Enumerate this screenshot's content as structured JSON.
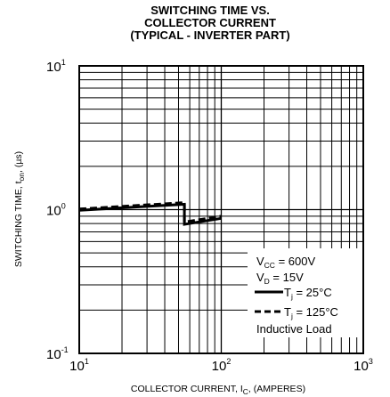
{
  "chart_data": {
    "type": "line",
    "title_lines": [
      "SWITCHING TIME VS.",
      "COLLECTOR CURRENT",
      "(TYPICAL - INVERTER PART)"
    ],
    "xlabel": "COLLECTOR CURRENT, I",
    "xlabel_sub": "C",
    "xlabel_suffix": ", (AMPERES)",
    "ylabel": "SWITCHING TIME, t",
    "ylabel_sub": "on",
    "ylabel_suffix": ", (µs)",
    "x_scale": "log",
    "y_scale": "log",
    "xlim": [
      10,
      1000
    ],
    "ylim": [
      0.1,
      10
    ],
    "x_ticks": [
      {
        "base": "10",
        "exp": "1"
      },
      {
        "base": "10",
        "exp": "2"
      },
      {
        "base": "10",
        "exp": "3"
      }
    ],
    "y_ticks": [
      {
        "base": "10",
        "exp": "1"
      },
      {
        "base": "10",
        "exp": "0"
      },
      {
        "base": "10",
        "exp": "-1"
      }
    ],
    "grid": true,
    "series": [
      {
        "name": "T_j = 25°C",
        "style": "solid",
        "x": [
          10,
          55,
          55,
          100
        ],
        "y": [
          0.99,
          1.09,
          0.79,
          0.87
        ]
      },
      {
        "name": "T_j = 125°C",
        "style": "dashed",
        "x": [
          10,
          55,
          55,
          100
        ],
        "y": [
          1.01,
          1.12,
          0.82,
          0.9
        ]
      }
    ],
    "legend": {
      "lines": [
        {
          "text": "V",
          "sub": "CC",
          "rest": " = 600V"
        },
        {
          "text": "V",
          "sub": "D",
          "rest": " = 15V"
        }
      ],
      "series_labels": [
        {
          "text": "T",
          "sub": "j",
          "rest": " = 25°C",
          "style": "solid"
        },
        {
          "text": "T",
          "sub": "j",
          "rest": " = 125°C",
          "style": "dashed"
        }
      ],
      "note": "Inductive Load",
      "position": "bottom-right"
    }
  }
}
